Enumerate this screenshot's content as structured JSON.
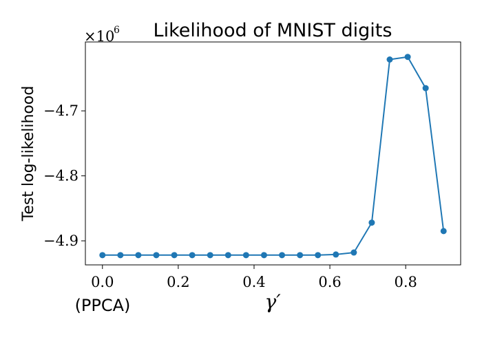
{
  "chart_data": {
    "type": "line",
    "title": "Likelihood of MNIST digits",
    "xlabel": "γ′",
    "ylabel": "Test log-likelihood",
    "y_offset_label": "×10",
    "y_offset_exponent": "6",
    "x_annotation": "(PPCA)",
    "xlim": [
      -0.045,
      0.945
    ],
    "ylim": [
      -4.937,
      -4.594
    ],
    "x_ticks": [
      0.0,
      0.2,
      0.4,
      0.6,
      0.8
    ],
    "x_tick_labels": [
      "0.0",
      "0.2",
      "0.4",
      "0.6",
      "0.8"
    ],
    "y_ticks": [
      -4.9,
      -4.8,
      -4.7
    ],
    "y_tick_labels": [
      "−4.9",
      "−4.8",
      "−4.7"
    ],
    "grid": false,
    "line_color": "#1f77b4",
    "series": [
      {
        "x": [
          0.0,
          0.0474,
          0.0947,
          0.1421,
          0.1895,
          0.2368,
          0.2842,
          0.3316,
          0.3789,
          0.4263,
          0.4737,
          0.5211,
          0.5684,
          0.6158,
          0.6632,
          0.7105,
          0.7579,
          0.8053,
          0.8526,
          0.9
        ],
        "y": [
          -4.922,
          -4.922,
          -4.922,
          -4.922,
          -4.922,
          -4.922,
          -4.922,
          -4.922,
          -4.922,
          -4.922,
          -4.922,
          -4.922,
          -4.922,
          -4.921,
          -4.918,
          -4.872,
          -4.621,
          -4.617,
          -4.665,
          -4.885
        ]
      }
    ]
  }
}
